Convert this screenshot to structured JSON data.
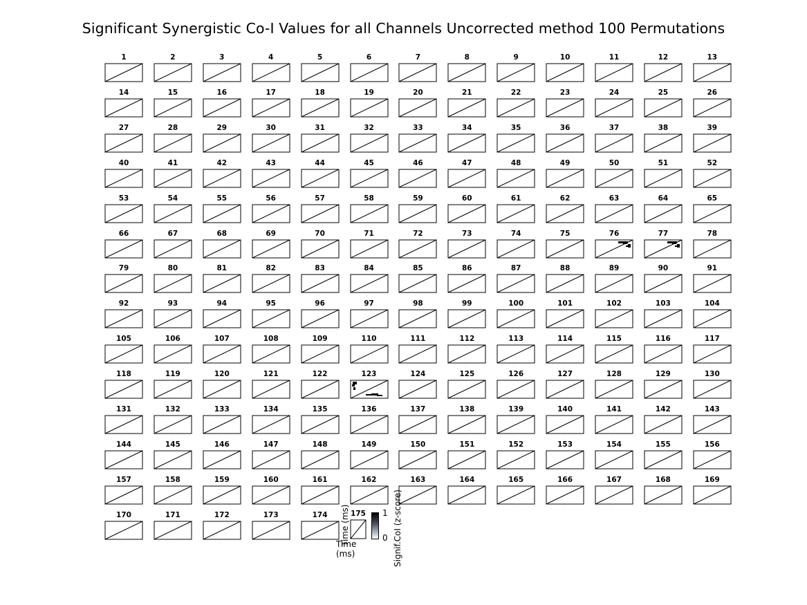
{
  "chart_data": {
    "type": "heatmap",
    "title": "Significant Synergistic Co-I Values for all Channels Uncorrected method 100 Permutations",
    "subplot_labels": [
      "1",
      "2",
      "3",
      "4",
      "5",
      "6",
      "7",
      "8",
      "9",
      "10",
      "11",
      "12",
      "13",
      "14",
      "15",
      "16",
      "17",
      "18",
      "19",
      "20",
      "21",
      "22",
      "23",
      "24",
      "25",
      "26",
      "27",
      "28",
      "29",
      "30",
      "31",
      "32",
      "33",
      "34",
      "35",
      "36",
      "37",
      "38",
      "39",
      "40",
      "41",
      "42",
      "43",
      "44",
      "45",
      "46",
      "47",
      "48",
      "49",
      "50",
      "51",
      "52",
      "53",
      "54",
      "55",
      "56",
      "57",
      "58",
      "59",
      "60",
      "61",
      "62",
      "63",
      "64",
      "65",
      "66",
      "67",
      "68",
      "69",
      "70",
      "71",
      "72",
      "73",
      "74",
      "75",
      "76",
      "77",
      "78",
      "79",
      "80",
      "81",
      "82",
      "83",
      "84",
      "85",
      "86",
      "87",
      "88",
      "89",
      "90",
      "91",
      "92",
      "93",
      "94",
      "95",
      "96",
      "97",
      "98",
      "99",
      "100",
      "101",
      "102",
      "103",
      "104",
      "105",
      "106",
      "107",
      "108",
      "109",
      "110",
      "111",
      "112",
      "113",
      "114",
      "115",
      "116",
      "117",
      "118",
      "119",
      "120",
      "121",
      "122",
      "123",
      "124",
      "125",
      "126",
      "127",
      "128",
      "129",
      "130",
      "131",
      "132",
      "133",
      "134",
      "135",
      "136",
      "137",
      "138",
      "139",
      "140",
      "141",
      "142",
      "143",
      "144",
      "145",
      "146",
      "147",
      "148",
      "149",
      "150",
      "151",
      "152",
      "153",
      "154",
      "155",
      "156",
      "157",
      "158",
      "159",
      "160",
      "161",
      "162",
      "163",
      "164",
      "165",
      "166",
      "167",
      "168",
      "169",
      "170",
      "171",
      "172",
      "173",
      "174",
      "175"
    ],
    "xlabel": "Time (ms)",
    "ylabel": "Time (ms)",
    "colorbar": {
      "label": "Signif.CoI (z-score)",
      "ticks": [
        "1",
        "0"
      ],
      "range": [
        0,
        1
      ],
      "colormap": [
        "#ffffff",
        "#000000"
      ]
    },
    "significant_channels": [
      "76",
      "77",
      "123"
    ],
    "diagonal": true
  }
}
